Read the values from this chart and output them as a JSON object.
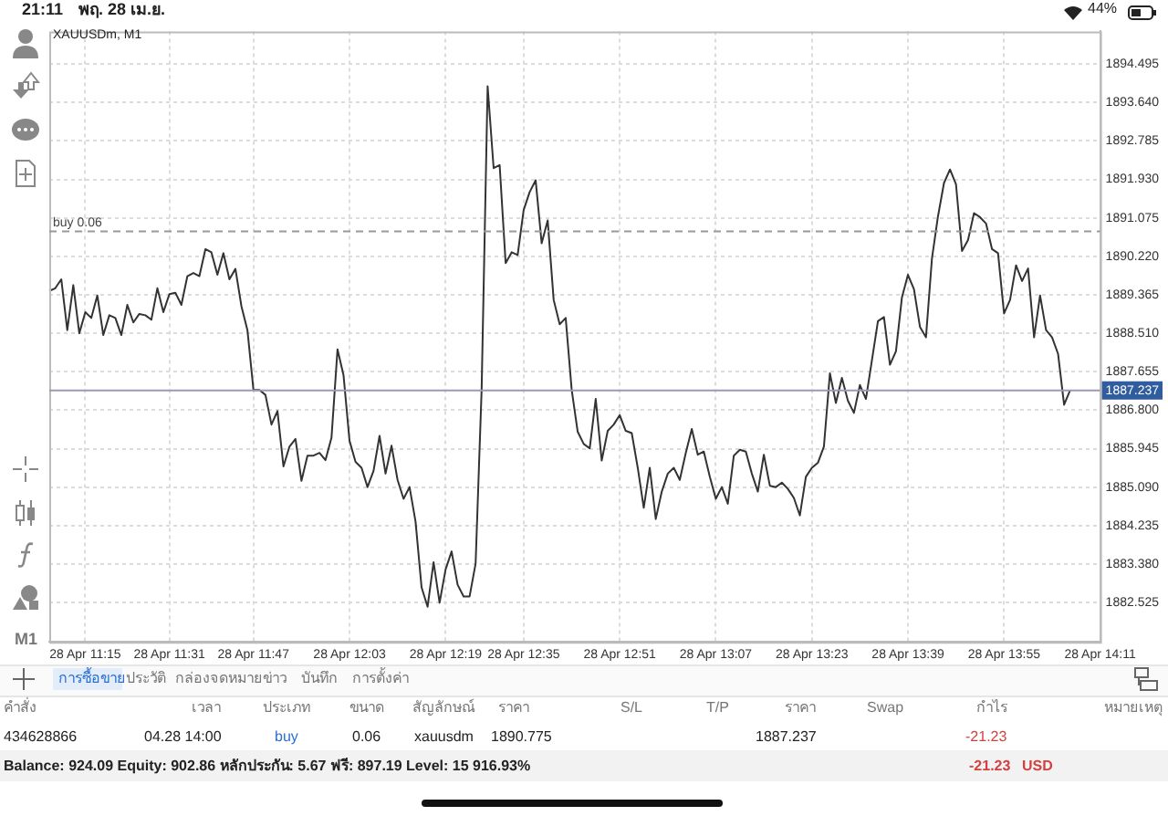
{
  "chart_data": {
    "type": "line",
    "title": "XAUUSDm, M1",
    "legend": false,
    "grid": true,
    "marker": "none",
    "line_style": "solid",
    "categories": [
      null,
      null,
      null,
      null,
      null,
      null,
      "28 Apr 11:15",
      null,
      null,
      null,
      null,
      null,
      null,
      null,
      null,
      null,
      null,
      null,
      null,
      null,
      "28 Apr 11:31",
      null,
      null,
      null,
      null,
      null,
      null,
      null,
      null,
      null,
      null,
      null,
      null,
      null,
      "28 Apr 11:47",
      null,
      null,
      null,
      null,
      null,
      null,
      null,
      null,
      null,
      null,
      null,
      null,
      null,
      null,
      null,
      "28 Apr 12:03",
      null,
      null,
      null,
      null,
      null,
      null,
      null,
      null,
      null,
      null,
      null,
      null,
      null,
      null,
      null,
      "28 Apr 12:19",
      null,
      null,
      null,
      null,
      null,
      null,
      null,
      null,
      null,
      null,
      null,
      null,
      "28 Apr 12:35",
      null,
      null,
      null,
      null,
      null,
      null,
      null,
      null,
      null,
      null,
      null,
      null,
      null,
      null,
      null,
      "28 Apr 12:51",
      null,
      null,
      null,
      null,
      null,
      null,
      null,
      null,
      null,
      null,
      null,
      null,
      null,
      null,
      null,
      "28 Apr 13:07",
      null,
      null,
      null,
      null,
      null,
      null,
      null,
      null,
      null,
      null,
      null,
      null,
      null,
      null,
      null,
      "28 Apr 13:23",
      null,
      null,
      null,
      null,
      null,
      null,
      null,
      null,
      null,
      null,
      null,
      null,
      null,
      null,
      null,
      "28 Apr 13:39",
      null,
      null,
      null,
      null,
      null,
      null,
      null,
      null,
      null,
      null,
      null,
      null,
      null,
      null,
      null,
      "28 Apr 13:55",
      null,
      null,
      null,
      null,
      null,
      null,
      null,
      null,
      null,
      null,
      null,
      null,
      null,
      null,
      null,
      "28 Apr 14:11"
    ],
    "series": [
      {
        "color": "#333333",
        "values": [
          1889.45,
          1889.51,
          1889.71,
          1888.58,
          1889.58,
          1888.51,
          1888.98,
          1888.85,
          1889.35,
          1888.47,
          1888.91,
          1888.85,
          1888.47,
          1889.14,
          1888.75,
          1888.94,
          1888.91,
          1888.81,
          1889.51,
          1888.98,
          1889.38,
          1889.41,
          1889.14,
          1889.78,
          1889.85,
          1889.78,
          1890.38,
          1890.31,
          1889.81,
          1890.29,
          1889.71,
          1889.94,
          1889.11,
          1888.58,
          1887.25,
          1887.25,
          1887.14,
          1886.48,
          1886.78,
          1885.55,
          1885.99,
          1886.16,
          1885.23,
          1885.79,
          1885.79,
          1885.85,
          1885.69,
          1886.19,
          1888.15,
          1887.58,
          1886.12,
          1885.65,
          1885.52,
          1885.09,
          1885.45,
          1886.23,
          1885.39,
          1886.01,
          1885.25,
          1884.83,
          1885.09,
          1884.32,
          1882.86,
          1882.43,
          1883.42,
          1882.52,
          1883.26,
          1883.66,
          1882.92,
          1882.66,
          1882.66,
          1883.39,
          1887.25,
          1894.0,
          1892.18,
          1892.25,
          1890.07,
          1890.31,
          1890.25,
          1891.25,
          1891.65,
          1891.91,
          1890.51,
          1891.02,
          1889.25,
          1888.71,
          1888.85,
          1887.25,
          1886.32,
          1886.05,
          1885.95,
          1887.05,
          1885.68,
          1886.34,
          1886.48,
          1886.69,
          1886.34,
          1886.29,
          1885.52,
          1884.63,
          1885.52,
          1884.38,
          1884.99,
          1885.39,
          1885.52,
          1885.25,
          1885.85,
          1886.38,
          1885.81,
          1885.88,
          1885.32,
          1884.83,
          1885.09,
          1884.72,
          1885.79,
          1885.92,
          1885.88,
          1885.39,
          1884.99,
          1885.81,
          1885.12,
          1885.09,
          1885.19,
          1885.05,
          1884.85,
          1884.46,
          1885.32,
          1885.52,
          1885.63,
          1885.99,
          1887.62,
          1886.96,
          1887.52,
          1887.01,
          1886.74,
          1887.36,
          1887.05,
          1887.91,
          1888.78,
          1888.87,
          1887.81,
          1888.11,
          1889.31,
          1889.81,
          1889.49,
          1888.65,
          1888.42,
          1890.18,
          1891.11,
          1891.85,
          1892.15,
          1891.82,
          1890.34,
          1890.58,
          1891.18,
          1891.09,
          1890.95,
          1890.38,
          1890.29,
          1888.95,
          1889.25,
          1890.02,
          1889.67,
          1889.95,
          1888.42,
          1889.35,
          1888.58,
          1888.42,
          1888.05,
          1886.92,
          1887.24,
          null,
          null,
          null,
          null,
          null
        ]
      }
    ],
    "ylim": [
      1881.65,
      1895.22
    ],
    "yticks": [
      1882.525,
      {
        "value": 1883.38,
        "label": "1883.380"
      },
      1884.235,
      {
        "value": 1885.09,
        "label": "1885.090"
      },
      1885.945,
      {
        "value": 1886.8,
        "label": "1886.800"
      },
      1887.655,
      {
        "value": 1888.51,
        "label": "1888.510"
      },
      1889.365,
      {
        "value": 1890.22,
        "label": "1890.220"
      },
      1891.075,
      {
        "value": 1891.93,
        "label": "1891.930"
      },
      1892.785,
      {
        "value": 1893.64,
        "label": "1893.640"
      },
      1894.495
    ],
    "ref_lines": [
      {
        "axis": "y",
        "value": 1890.775,
        "label": "buy 0.06",
        "color": "#999999",
        "line_style": "dashed"
      },
      {
        "axis": "y",
        "value": 1887.237,
        "label": "1887.237",
        "color": "#9a9ab4",
        "line_style": "solid"
      }
    ],
    "annotations": [
      "21:11",
      "พฤ. 28 เม.ย.",
      "44%",
      "M1",
      "การซื้อขาย",
      "ประวัติ",
      "กล่องจดหมาย",
      "ข่าว",
      "บันทึก",
      "การตั้งค่า",
      "คำสั่ง",
      "เวลา",
      "ประเภท",
      "ขนาด",
      "สัญลักษณ์",
      "ราคา",
      "S/L",
      "T/P",
      "ราคา",
      "Swap",
      "กำไร",
      "หมายเหตุ",
      "434628866",
      "04.28 14:00",
      "buy",
      "0.06",
      "xauusdm",
      "1890.775",
      "1887.237",
      "-21.23",
      "Balance: 924.09 Equity: 902.86 หลักประกัน: 5.67 ฟรี: 897.19 Level: 15 916.93%",
      "-21.23",
      "USD"
    ]
  }
}
